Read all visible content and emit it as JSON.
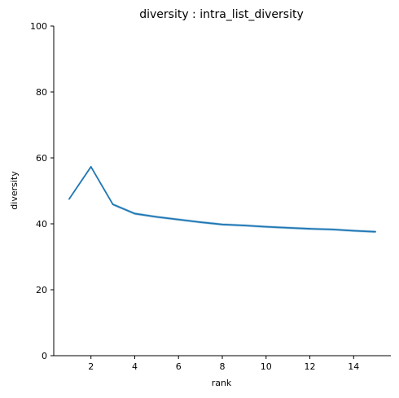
{
  "chart_data": {
    "type": "line",
    "title": "diversity : intra_list_diversity",
    "xlabel": "rank",
    "ylabel": "diversity",
    "xlim": [
      0.3,
      15.7
    ],
    "ylim": [
      0,
      100
    ],
    "xticks": [
      2,
      4,
      6,
      8,
      10,
      12,
      14
    ],
    "yticks": [
      0,
      20,
      40,
      60,
      80,
      100
    ],
    "grid": false,
    "legend": "none",
    "series": [
      {
        "color": "#1f77b4",
        "x": [
          1,
          2,
          3,
          4,
          5,
          6,
          7,
          8,
          9,
          10,
          11,
          12,
          13,
          14,
          15
        ],
        "y": [
          47.5,
          57.3,
          45.9,
          43.1,
          42.1,
          41.3,
          40.5,
          39.8,
          39.5,
          39.1,
          38.8,
          38.5,
          38.3,
          37.9,
          37.6
        ],
        "y_lower": [
          47.2,
          57.0,
          45.5,
          42.7,
          41.7,
          40.9,
          40.1,
          39.4,
          39.1,
          38.7,
          38.4,
          38.1,
          37.9,
          37.5,
          37.2
        ],
        "y_upper": [
          47.8,
          57.6,
          46.3,
          43.5,
          42.5,
          41.7,
          40.9,
          40.2,
          39.9,
          39.5,
          39.2,
          38.9,
          38.7,
          38.3,
          38.0
        ]
      }
    ]
  }
}
